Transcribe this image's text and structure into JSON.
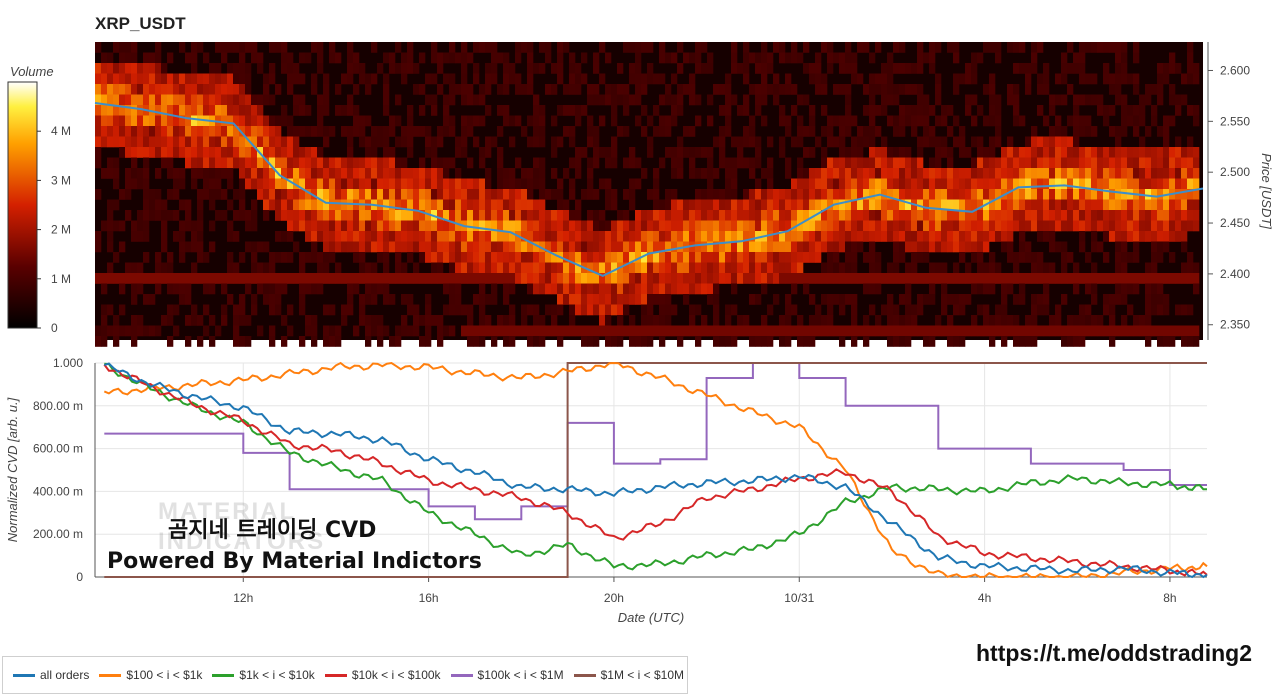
{
  "title": "XRP_USDT",
  "watermark": [
    "MATERIAL",
    "INDICATORS"
  ],
  "overlay": {
    "line1": "곰지네 트레이딩 CVD",
    "line2": "Powered By Material Indictors"
  },
  "link": "https://t.me/oddstrading2",
  "colors": {
    "all_orders": "#1f77b4",
    "s100_1k": "#ff7f0e",
    "s1k_10k": "#2ca02c",
    "s10k_100k": "#d62728",
    "s100k_1m": "#9467bd",
    "s1m_10m": "#8c564b",
    "price_line": "#3d8ec9"
  },
  "chart_data": [
    {
      "type": "heatmap",
      "title": "XRP_USDT",
      "ylabel": "Price [USDT]",
      "colorbar": {
        "label": "Volume",
        "ticks": [
          "0",
          "1 M",
          "2 M",
          "3 M",
          "4 M"
        ],
        "range": [
          0,
          5000000
        ]
      },
      "yticks": [
        "2.350",
        "2.400",
        "2.450",
        "2.500",
        "2.550",
        "2.600"
      ],
      "ylim": [
        2.335,
        2.628
      ],
      "x_range": [
        "10/30 08:48",
        "10/31 08:48"
      ],
      "price_series": {
        "name": "price",
        "x": [
          "09h",
          "10h",
          "11h",
          "12h",
          "13h",
          "14h",
          "15h",
          "16h",
          "17h",
          "18h",
          "19h",
          "20h",
          "21h",
          "22h",
          "23h",
          "00h",
          "01h",
          "02h",
          "03h",
          "04h",
          "05h",
          "06h",
          "07h",
          "08h",
          "08:48"
        ],
        "values": [
          2.568,
          2.562,
          2.553,
          2.548,
          2.497,
          2.47,
          2.468,
          2.462,
          2.447,
          2.441,
          2.418,
          2.398,
          2.42,
          2.428,
          2.432,
          2.442,
          2.468,
          2.478,
          2.465,
          2.461,
          2.485,
          2.487,
          2.481,
          2.476,
          2.484
        ]
      }
    },
    {
      "type": "line",
      "xlabel": "Date (UTC)",
      "ylabel": "Normalized CVD [arb. u.]",
      "xticks": [
        "12h",
        "16h",
        "20h",
        "10/31",
        "4h",
        "8h"
      ],
      "yticks": [
        "0",
        "200.00 m",
        "400.00 m",
        "600.00 m",
        "800.00 m",
        "1.000"
      ],
      "ylim": [
        0,
        1.0
      ],
      "x_hours": [
        9,
        10,
        11,
        12,
        13,
        14,
        15,
        16,
        17,
        18,
        19,
        20,
        21,
        22,
        23,
        24,
        25,
        26,
        27,
        28,
        29,
        30,
        31,
        32,
        32.8
      ],
      "series": [
        {
          "name": "all orders",
          "values": [
            0.99,
            0.9,
            0.84,
            0.79,
            0.68,
            0.67,
            0.64,
            0.55,
            0.49,
            0.42,
            0.41,
            0.39,
            0.42,
            0.44,
            0.45,
            0.47,
            0.42,
            0.25,
            0.09,
            0.05,
            0.04,
            0.03,
            0.04,
            0.02,
            0.01
          ]
        },
        {
          "name": "$100 < i < $1k",
          "values": [
            0.86,
            0.88,
            0.9,
            0.92,
            0.95,
            0.98,
            0.99,
            0.98,
            0.95,
            0.93,
            0.96,
            1.0,
            0.93,
            0.85,
            0.77,
            0.7,
            0.5,
            0.12,
            0.01,
            0.0,
            0.0,
            0.0,
            0.02,
            0.04,
            0.05
          ]
        },
        {
          "name": "$1k < i < $10k",
          "values": [
            0.99,
            0.88,
            0.79,
            0.72,
            0.58,
            0.51,
            0.45,
            0.3,
            0.2,
            0.1,
            0.15,
            0.05,
            0.06,
            0.1,
            0.13,
            0.2,
            0.35,
            0.42,
            0.41,
            0.4,
            0.44,
            0.46,
            0.44,
            0.43,
            0.41
          ]
        },
        {
          "name": "$10k < i < $100k",
          "values": [
            0.99,
            0.89,
            0.8,
            0.73,
            0.62,
            0.59,
            0.53,
            0.45,
            0.41,
            0.37,
            0.3,
            0.18,
            0.25,
            0.37,
            0.41,
            0.46,
            0.49,
            0.4,
            0.19,
            0.11,
            0.09,
            0.07,
            0.05,
            0.03,
            0.01
          ]
        },
        {
          "name": "$100k < i < $1M",
          "values": [
            0.67,
            0.67,
            0.67,
            0.58,
            0.41,
            0.41,
            0.41,
            0.33,
            0.27,
            0.33,
            0.72,
            0.53,
            0.55,
            0.93,
            1.0,
            0.93,
            0.8,
            0.8,
            0.6,
            0.6,
            0.53,
            0.53,
            0.5,
            0.43,
            0.43
          ]
        },
        {
          "name": "$1M < i < $10M",
          "values": [
            0.0,
            0.0,
            0.0,
            0.0,
            0.0,
            0.0,
            0.0,
            0.0,
            0.0,
            0.0,
            1.0,
            1.0,
            1.0,
            1.0,
            1.0,
            1.0,
            1.0,
            1.0,
            1.0,
            1.0,
            1.0,
            1.0,
            1.0,
            1.0,
            1.0
          ]
        }
      ]
    }
  ]
}
